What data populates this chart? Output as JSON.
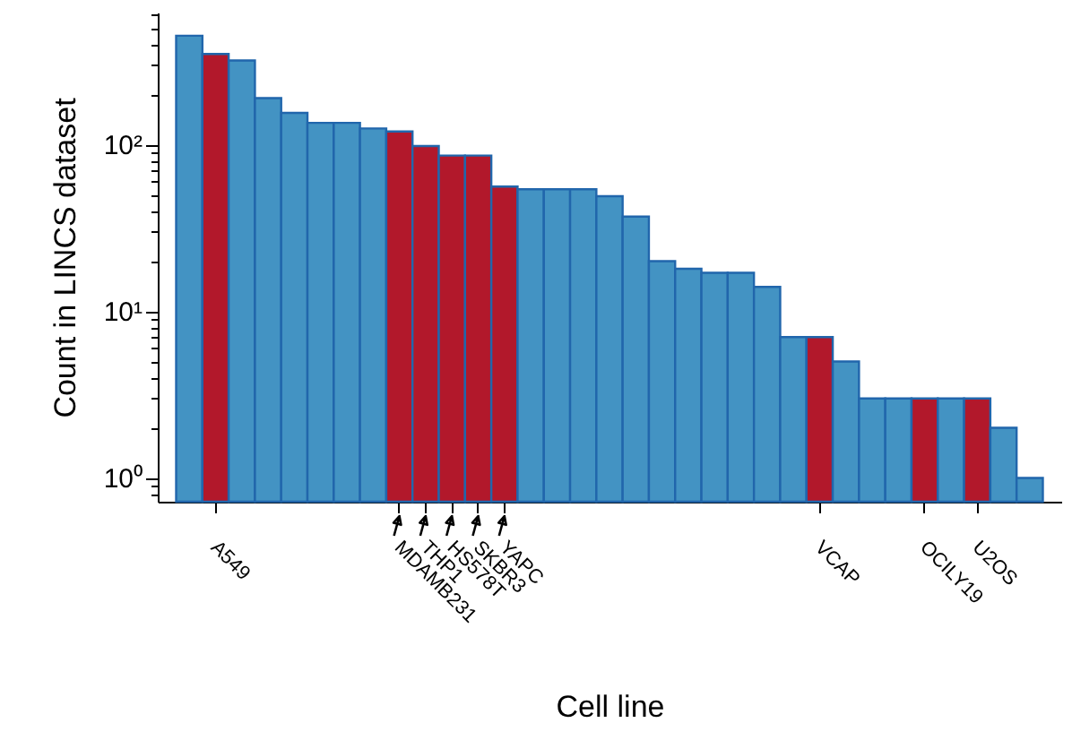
{
  "chart_data": {
    "type": "bar",
    "xlabel": "Cell line",
    "ylabel": "Count in LINCS dataset",
    "categories": [
      null,
      "A549",
      null,
      null,
      null,
      null,
      null,
      null,
      "MDAMB231",
      "THP1",
      "HS578T",
      "SKBR3",
      "YAPC",
      null,
      null,
      null,
      null,
      null,
      null,
      null,
      null,
      null,
      null,
      null,
      "VCAP",
      null,
      null,
      null,
      "OCILY19",
      null,
      "U2OS",
      null,
      null
    ],
    "values": [
      450,
      350,
      320,
      190,
      155,
      135,
      135,
      125,
      120,
      98,
      86,
      86,
      56,
      54,
      54,
      54,
      49,
      37,
      20,
      18,
      17,
      17,
      14,
      7,
      7,
      5,
      3,
      3,
      3,
      3,
      3,
      2,
      1
    ],
    "colors": [
      "#4393c3",
      "#b2182b",
      "#4393c3",
      "#4393c3",
      "#4393c3",
      "#4393c3",
      "#4393c3",
      "#4393c3",
      "#b2182b",
      "#b2182b",
      "#b2182b",
      "#b2182b",
      "#b2182b",
      "#4393c3",
      "#4393c3",
      "#4393c3",
      "#4393c3",
      "#4393c3",
      "#4393c3",
      "#4393c3",
      "#4393c3",
      "#4393c3",
      "#4393c3",
      "#4393c3",
      "#b2182b",
      "#4393c3",
      "#4393c3",
      "#4393c3",
      "#b2182b",
      "#4393c3",
      "#b2182b",
      "#4393c3",
      "#4393c3"
    ],
    "log": true,
    "ylim": [
      0.72,
      620
    ],
    "yticks": [
      {
        "value": 0.8,
        "label": null
      },
      {
        "value": 0.9,
        "label": null
      },
      {
        "value": 1,
        "label": "10⁰"
      },
      {
        "value": 2,
        "label": null
      },
      {
        "value": 3,
        "label": null
      },
      {
        "value": 4,
        "label": null
      },
      {
        "value": 5,
        "label": null
      },
      {
        "value": 6,
        "label": null
      },
      {
        "value": 7,
        "label": null
      },
      {
        "value": 8,
        "label": null
      },
      {
        "value": 9,
        "label": null
      },
      {
        "value": 10,
        "label": "10¹"
      },
      {
        "value": 20,
        "label": null
      },
      {
        "value": 30,
        "label": null
      },
      {
        "value": 40,
        "label": null
      },
      {
        "value": 50,
        "label": null
      },
      {
        "value": 60,
        "label": null
      },
      {
        "value": 70,
        "label": null
      },
      {
        "value": 80,
        "label": null
      },
      {
        "value": 90,
        "label": null
      },
      {
        "value": 100,
        "label": "10²"
      },
      {
        "value": 200,
        "label": null
      },
      {
        "value": 300,
        "label": null
      },
      {
        "value": 400,
        "label": null
      },
      {
        "value": 500,
        "label": null
      },
      {
        "value": 600,
        "label": null
      }
    ]
  }
}
